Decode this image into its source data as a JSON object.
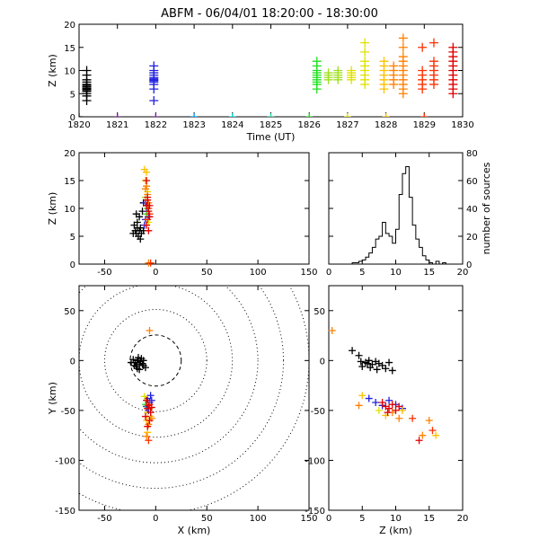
{
  "title": "ABFM - 06/04/01 18:20:00 - 18:30:00",
  "colors": {
    "ramp": [
      "#000000",
      "#7a1fa3",
      "#2020e0",
      "#00a0ff",
      "#00e0e0",
      "#20d0a0",
      "#20e020",
      "#a0e020",
      "#e0e000",
      "#ffc000",
      "#ff8000",
      "#ff3000",
      "#e00000"
    ]
  },
  "chart_data": [
    {
      "id": "time-height",
      "type": "scatter",
      "xlabel": "Time (UT)",
      "ylabel": "Z (km)",
      "xlim": [
        1820,
        1830
      ],
      "ylim": [
        0,
        20
      ],
      "xticks": [
        "1820",
        "1821",
        "1822",
        "1823",
        "1824",
        "1825",
        "1826",
        "1827",
        "1828",
        "1829",
        "1830"
      ],
      "yticks": [
        "0",
        "5",
        "10",
        "15",
        "20"
      ],
      "ground_markers": [
        {
          "x": 1820.0,
          "c": 0
        },
        {
          "x": 1821.0,
          "c": 1
        },
        {
          "x": 1822.0,
          "c": 1
        },
        {
          "x": 1823.0,
          "c": 3
        },
        {
          "x": 1824.0,
          "c": 4
        },
        {
          "x": 1825.0,
          "c": 5
        },
        {
          "x": 1826.0,
          "c": 6
        },
        {
          "x": 1827.0,
          "c": 8
        },
        {
          "x": 1828.0,
          "c": 9
        },
        {
          "x": 1829.0,
          "c": 11
        }
      ],
      "groups": [
        {
          "x": 1820.2,
          "c": 0,
          "z": [
            4.5,
            5,
            5.5,
            6,
            6.2,
            6.5,
            7,
            7.5,
            5.8,
            6.8,
            8,
            3.5,
            9,
            10
          ]
        },
        {
          "x": 1821.95,
          "c": 2,
          "z": [
            6,
            7,
            7.5,
            8,
            8.5,
            9,
            9.5,
            10,
            11,
            3.5,
            7.8,
            8.2
          ]
        },
        {
          "x": 1826.2,
          "c": 6,
          "z": [
            7,
            8,
            8.5,
            9,
            9.5,
            10,
            11,
            12,
            6,
            7.5
          ]
        },
        {
          "x": 1826.5,
          "c": 7,
          "z": [
            8,
            8.5,
            9,
            9.5
          ]
        },
        {
          "x": 1826.75,
          "c": 7,
          "z": [
            8,
            8.5,
            9,
            9.5,
            10
          ]
        },
        {
          "x": 1827.1,
          "c": 8,
          "z": [
            8,
            8.5,
            9,
            9.5,
            10
          ]
        },
        {
          "x": 1827.45,
          "c": 8,
          "z": [
            7,
            8,
            9,
            10,
            11,
            12,
            14,
            16
          ]
        },
        {
          "x": 1827.95,
          "c": 9,
          "z": [
            6,
            7,
            8,
            9,
            10,
            11,
            12
          ]
        },
        {
          "x": 1828.2,
          "c": 10,
          "z": [
            7,
            8,
            9,
            10,
            11
          ]
        },
        {
          "x": 1828.45,
          "c": 10,
          "z": [
            5,
            6,
            7,
            8,
            9,
            10,
            11,
            12,
            13,
            15,
            17
          ]
        },
        {
          "x": 1828.95,
          "c": 11,
          "z": [
            6,
            7,
            8,
            9,
            10,
            15
          ]
        },
        {
          "x": 1829.25,
          "c": 11,
          "z": [
            7,
            8,
            9,
            10,
            11,
            12,
            16
          ]
        },
        {
          "x": 1829.75,
          "c": 12,
          "z": [
            5,
            6,
            7,
            8,
            9,
            10,
            11,
            12,
            13,
            14,
            15
          ]
        }
      ]
    },
    {
      "id": "x-z",
      "type": "scatter",
      "xlabel": "",
      "ylabel": "Z (km)",
      "xlim": [
        -75,
        150
      ],
      "ylim": [
        0,
        20
      ],
      "xticks": [
        "-50",
        "0",
        "50",
        "100",
        "150"
      ],
      "yticks": [
        "0",
        "5",
        "10",
        "15",
        "20"
      ],
      "points": [
        {
          "x": -20,
          "z": 6.0,
          "c": 0
        },
        {
          "x": -19,
          "z": 5.5,
          "c": 0
        },
        {
          "x": -18,
          "z": 6.5,
          "c": 0
        },
        {
          "x": -17,
          "z": 5.0,
          "c": 0
        },
        {
          "x": -16,
          "z": 6.0,
          "c": 0
        },
        {
          "x": -21,
          "z": 7.0,
          "c": 0
        },
        {
          "x": -15,
          "z": 6.5,
          "c": 0
        },
        {
          "x": -18,
          "z": 7.5,
          "c": 0
        },
        {
          "x": -14,
          "z": 5.5,
          "c": 0
        },
        {
          "x": -16,
          "z": 8.5,
          "c": 0
        },
        {
          "x": -13,
          "z": 9.5,
          "c": 0
        },
        {
          "x": -22,
          "z": 5.5,
          "c": 0
        },
        {
          "x": -12,
          "z": 6.0,
          "c": 0
        },
        {
          "x": -15,
          "z": 4.5,
          "c": 0
        },
        {
          "x": -19,
          "z": 9.0,
          "c": 0
        },
        {
          "x": -12,
          "z": 11.0,
          "c": 0
        },
        {
          "x": -10,
          "z": 8.0,
          "c": 2
        },
        {
          "x": -9,
          "z": 9.5,
          "c": 2
        },
        {
          "x": -8,
          "z": 10.5,
          "c": 2
        },
        {
          "x": -11,
          "z": 7.0,
          "c": 2
        },
        {
          "x": -7,
          "z": 8.5,
          "c": 2
        },
        {
          "x": -10,
          "z": 11.0,
          "c": 2
        },
        {
          "x": -9,
          "z": 9.0,
          "c": 6
        },
        {
          "x": -8,
          "z": 10.0,
          "c": 6
        },
        {
          "x": -10,
          "z": 12.0,
          "c": 7
        },
        {
          "x": -7,
          "z": 7.5,
          "c": 8
        },
        {
          "x": -8,
          "z": 13.0,
          "c": 8
        },
        {
          "x": -10,
          "z": 15.0,
          "c": 9
        },
        {
          "x": -9,
          "z": 16.5,
          "c": 9
        },
        {
          "x": -11,
          "z": 17.0,
          "c": 9
        },
        {
          "x": -8,
          "z": 12.5,
          "c": 10
        },
        {
          "x": -7,
          "z": 11.0,
          "c": 10
        },
        {
          "x": -9,
          "z": 14.0,
          "c": 10
        },
        {
          "x": -10,
          "z": 13.5,
          "c": 10
        },
        {
          "x": -6,
          "z": 9.0,
          "c": 11
        },
        {
          "x": -7,
          "z": 10.0,
          "c": 11
        },
        {
          "x": -8,
          "z": 8.0,
          "c": 11
        },
        {
          "x": -9,
          "z": 10.5,
          "c": 12
        },
        {
          "x": -7,
          "z": 9.5,
          "c": 12
        },
        {
          "x": -8,
          "z": 11.5,
          "c": 12
        },
        {
          "x": -6,
          "z": 8.5,
          "c": 12
        },
        {
          "x": -9,
          "z": 7.0,
          "c": 12
        },
        {
          "x": -7,
          "z": 6.0,
          "c": 12
        },
        {
          "x": -8,
          "z": 12.0,
          "c": 12
        },
        {
          "x": -6,
          "z": 10.5,
          "c": 12
        },
        {
          "x": -9,
          "z": 15.0,
          "c": 12
        },
        {
          "x": -7,
          "z": 0.2,
          "c": 10
        },
        {
          "x": -5,
          "z": 0.2,
          "c": 11
        }
      ]
    },
    {
      "id": "z-histogram",
      "type": "bar",
      "xlabel": "",
      "ylabel": "number of sources",
      "xlim": [
        0,
        20
      ],
      "ylim": [
        0,
        80
      ],
      "xticks": [
        "0",
        "5",
        "10",
        "15",
        "20"
      ],
      "yticks": [
        "0",
        "20",
        "40",
        "60",
        "80"
      ],
      "bin_width": 0.5,
      "bin_start": 0,
      "counts": [
        0,
        0,
        0,
        0,
        0,
        0,
        0,
        1,
        1,
        2,
        3,
        5,
        8,
        12,
        18,
        20,
        30,
        22,
        20,
        15,
        25,
        50,
        65,
        70,
        48,
        28,
        18,
        12,
        6,
        3,
        1,
        0,
        2,
        0,
        1,
        0,
        0,
        0,
        0,
        0
      ]
    },
    {
      "id": "x-y",
      "type": "scatter",
      "xlabel": "X (km)",
      "ylabel": "Y (km)",
      "xlim": [
        -75,
        150
      ],
      "ylim": [
        -150,
        75
      ],
      "xticks": [
        "-50",
        "0",
        "50",
        "100",
        "150"
      ],
      "yticks": [
        "-150",
        "-100",
        "-50",
        "0",
        "50"
      ],
      "range_rings_km": [
        25,
        50,
        75,
        100,
        125,
        150
      ],
      "points": [
        {
          "x": -20,
          "y": -2,
          "c": 0
        },
        {
          "x": -18,
          "y": 0,
          "c": 0
        },
        {
          "x": -16,
          "y": -4,
          "c": 0
        },
        {
          "x": -22,
          "y": 1,
          "c": 0
        },
        {
          "x": -15,
          "y": -1,
          "c": 0
        },
        {
          "x": -19,
          "y": -6,
          "c": 0
        },
        {
          "x": -17,
          "y": 3,
          "c": 0
        },
        {
          "x": -13,
          "y": -3,
          "c": 0
        },
        {
          "x": -21,
          "y": -5,
          "c": 0
        },
        {
          "x": -14,
          "y": 2,
          "c": 0
        },
        {
          "x": -12,
          "y": -5,
          "c": 0
        },
        {
          "x": -24,
          "y": -2,
          "c": 0
        },
        {
          "x": -10,
          "y": -7,
          "c": 0
        },
        {
          "x": -16,
          "y": -9,
          "c": 0
        },
        {
          "x": -18,
          "y": -8,
          "c": 0
        },
        {
          "x": -12,
          "y": 0,
          "c": 0
        },
        {
          "x": -8,
          "y": -38,
          "c": 2
        },
        {
          "x": -6,
          "y": -42,
          "c": 2
        },
        {
          "x": -9,
          "y": -46,
          "c": 2
        },
        {
          "x": -5,
          "y": -35,
          "c": 2
        },
        {
          "x": -7,
          "y": -50,
          "c": 2
        },
        {
          "x": -4,
          "y": -40,
          "c": 2
        },
        {
          "x": -10,
          "y": -44,
          "c": 6
        },
        {
          "x": -6,
          "y": -48,
          "c": 7
        },
        {
          "x": -8,
          "y": -52,
          "c": 8
        },
        {
          "x": -5,
          "y": -56,
          "c": 9
        },
        {
          "x": -9,
          "y": -60,
          "c": 9
        },
        {
          "x": -7,
          "y": -64,
          "c": 10
        },
        {
          "x": -4,
          "y": -58,
          "c": 10
        },
        {
          "x": -11,
          "y": -36,
          "c": 8
        },
        {
          "x": -8,
          "y": -72,
          "c": 9
        },
        {
          "x": -9,
          "y": -76,
          "c": 10
        },
        {
          "x": -7,
          "y": -80,
          "c": 11
        },
        {
          "x": -6,
          "y": -44,
          "c": 11
        },
        {
          "x": -8,
          "y": -48,
          "c": 12
        },
        {
          "x": -5,
          "y": -52,
          "c": 12
        },
        {
          "x": -10,
          "y": -56,
          "c": 12
        },
        {
          "x": -7,
          "y": -45,
          "c": 12
        },
        {
          "x": -9,
          "y": -40,
          "c": 12
        },
        {
          "x": -6,
          "y": -60,
          "c": 12
        },
        {
          "x": -4,
          "y": -47,
          "c": 12
        },
        {
          "x": -8,
          "y": -66,
          "c": 12
        },
        {
          "x": -6,
          "y": 30,
          "c": 10
        }
      ]
    },
    {
      "id": "z-y",
      "type": "scatter",
      "xlabel": "Z (km)",
      "ylabel": "",
      "xlim": [
        0,
        20
      ],
      "ylim": [
        -150,
        75
      ],
      "xticks": [
        "0",
        "5",
        "10",
        "15",
        "20"
      ],
      "yticks": [
        "-150",
        "-100",
        "-50",
        "0",
        "50"
      ],
      "points": [
        {
          "z": 3.5,
          "y": 10,
          "c": 0
        },
        {
          "z": 4.5,
          "y": 5,
          "c": 0
        },
        {
          "z": 5.5,
          "y": -2,
          "c": 0
        },
        {
          "z": 6.0,
          "y": 0,
          "c": 0
        },
        {
          "z": 6.5,
          "y": -4,
          "c": 0
        },
        {
          "z": 7.0,
          "y": -1,
          "c": 0
        },
        {
          "z": 7.5,
          "y": -3,
          "c": 0
        },
        {
          "z": 8.0,
          "y": -5,
          "c": 0
        },
        {
          "z": 5.0,
          "y": -6,
          "c": 0
        },
        {
          "z": 8.5,
          "y": -8,
          "c": 0
        },
        {
          "z": 9.0,
          "y": -2,
          "c": 0
        },
        {
          "z": 6.2,
          "y": -7,
          "c": 0
        },
        {
          "z": 7.2,
          "y": -9,
          "c": 0
        },
        {
          "z": 9.5,
          "y": -10,
          "c": 0
        },
        {
          "z": 5.8,
          "y": -3,
          "c": 0
        },
        {
          "z": 4.8,
          "y": -1,
          "c": 0
        },
        {
          "z": 6.0,
          "y": -38,
          "c": 2
        },
        {
          "z": 7.0,
          "y": -42,
          "c": 2
        },
        {
          "z": 8.0,
          "y": -45,
          "c": 2
        },
        {
          "z": 9.0,
          "y": -40,
          "c": 2
        },
        {
          "z": 10.0,
          "y": -44,
          "c": 2
        },
        {
          "z": 11.0,
          "y": -48,
          "c": 2
        },
        {
          "z": 4.5,
          "y": -45,
          "c": 10
        },
        {
          "z": 5.0,
          "y": -35,
          "c": 9
        },
        {
          "z": 7.5,
          "y": -50,
          "c": 8
        },
        {
          "z": 8.5,
          "y": -55,
          "c": 9
        },
        {
          "z": 9.5,
          "y": -52,
          "c": 10
        },
        {
          "z": 10.5,
          "y": -58,
          "c": 10
        },
        {
          "z": 11.0,
          "y": -50,
          "c": 9
        },
        {
          "z": 12.5,
          "y": -58,
          "c": 11
        },
        {
          "z": 14.0,
          "y": -75,
          "c": 10
        },
        {
          "z": 15.0,
          "y": -60,
          "c": 10
        },
        {
          "z": 16.0,
          "y": -75,
          "c": 9
        },
        {
          "z": 15.5,
          "y": -70,
          "c": 11
        },
        {
          "z": 8.0,
          "y": -42,
          "c": 12
        },
        {
          "z": 8.5,
          "y": -46,
          "c": 12
        },
        {
          "z": 9.0,
          "y": -48,
          "c": 12
        },
        {
          "z": 9.5,
          "y": -44,
          "c": 12
        },
        {
          "z": 10.0,
          "y": -50,
          "c": 12
        },
        {
          "z": 8.8,
          "y": -52,
          "c": 12
        },
        {
          "z": 10.5,
          "y": -46,
          "c": 12
        },
        {
          "z": 13.5,
          "y": -80,
          "c": 12
        },
        {
          "z": 0.5,
          "y": 30,
          "c": 10
        }
      ]
    }
  ]
}
